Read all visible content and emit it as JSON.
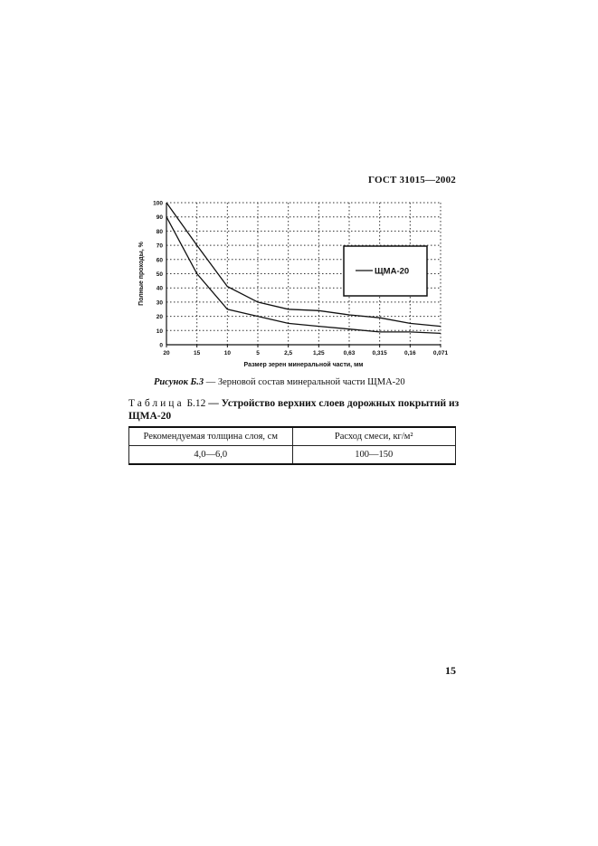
{
  "header": {
    "doc_code": "ГОСТ 31015—2002"
  },
  "chart_data": {
    "type": "line",
    "xlabel": "Размер зерен минеральной части, мм",
    "ylabel": "Полные проходы, %",
    "categories": [
      "20",
      "15",
      "10",
      "5",
      "2,5",
      "1,25",
      "0,63",
      "0,315",
      "0,16",
      "0,071"
    ],
    "ylim": [
      0,
      100
    ],
    "yticks": [
      "0",
      "10",
      "20",
      "30",
      "40",
      "50",
      "60",
      "70",
      "80",
      "90",
      "100"
    ],
    "grid": true,
    "legend": {
      "label": "ЩМА-20",
      "position": "right"
    },
    "series": [
      {
        "name": "ЩМА-20",
        "values": [
          100,
          70,
          41,
          30,
          25,
          24,
          21,
          19,
          15,
          13
        ]
      },
      {
        "name": "",
        "values": [
          90,
          50,
          25,
          20,
          15,
          13,
          11,
          9,
          9,
          8
        ]
      }
    ]
  },
  "caption": {
    "label": "Рисунок Б.3",
    "dash": "—",
    "text": "Зерновой состав минеральной части ЩМА-20"
  },
  "table_title": {
    "prefix": "Таблица",
    "number": "Б.12",
    "dash": "—",
    "title": "Устройство верхних слоев дорожных покрытий из ЩМА-20"
  },
  "table": {
    "headers": [
      "Рекомендуемая толщина слоя, см",
      "Расход смеси, кг/м²"
    ],
    "rows": [
      [
        "4,0—6,0",
        "100—150"
      ]
    ]
  },
  "page_number": "15"
}
